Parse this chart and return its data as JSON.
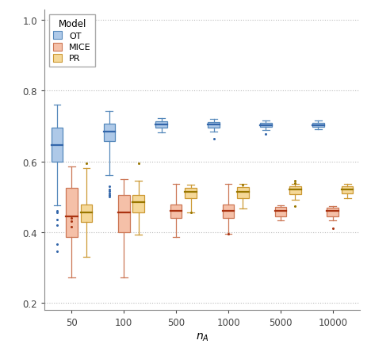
{
  "x_positions": [
    50,
    100,
    500,
    1000,
    5000,
    10000
  ],
  "x_labels": [
    "50",
    "100",
    "500",
    "1000",
    "5000",
    "10000"
  ],
  "x_label": "n_A",
  "ylim": [
    0.18,
    1.03
  ],
  "yticks": [
    0.2,
    0.4,
    0.6,
    0.8,
    1.0
  ],
  "grid_color": "#bbbbbb",
  "background_color": "#ffffff",
  "models": [
    "OT",
    "MICE",
    "PR"
  ],
  "colors": {
    "OT": {
      "fill": "#aec9e8",
      "edge": "#5588bb",
      "median": "#3366aa",
      "flier": "#3366aa"
    },
    "MICE": {
      "fill": "#f5c0a8",
      "edge": "#cc7755",
      "median": "#aa3311",
      "flier": "#aa3311"
    },
    "PR": {
      "fill": "#f5d898",
      "edge": "#cc9933",
      "median": "#997700",
      "flier": "#997700"
    }
  },
  "legend_colors": {
    "OT": "#aec9e8",
    "MICE": "#f5c0a8",
    "PR": "#f5d898"
  },
  "legend_edge_colors": {
    "OT": "#5588bb",
    "MICE": "#cc7755",
    "PR": "#cc9933"
  },
  "offsets": {
    "OT": -0.28,
    "MICE": 0.0,
    "PR": 0.28
  },
  "box_width": 0.22,
  "data": {
    "OT": {
      "50": {
        "q1": 0.6,
        "median": 0.645,
        "q3": 0.695,
        "whislo": 0.475,
        "whishi": 0.76,
        "fliers": [
          0.345,
          0.365,
          0.42,
          0.435,
          0.455,
          0.46
        ]
      },
      "100": {
        "q1": 0.658,
        "median": 0.685,
        "q3": 0.706,
        "whislo": 0.56,
        "whishi": 0.742,
        "fliers": [
          0.5,
          0.505,
          0.51,
          0.515,
          0.52,
          0.53
        ]
      },
      "500": {
        "q1": 0.695,
        "median": 0.704,
        "q3": 0.713,
        "whislo": 0.683,
        "whishi": 0.722,
        "fliers": []
      },
      "1000": {
        "q1": 0.695,
        "median": 0.704,
        "q3": 0.712,
        "whislo": 0.685,
        "whishi": 0.72,
        "fliers": [
          0.665
        ]
      },
      "5000": {
        "q1": 0.697,
        "median": 0.703,
        "q3": 0.709,
        "whislo": 0.688,
        "whishi": 0.716,
        "fliers": [
          0.677
        ]
      },
      "10000": {
        "q1": 0.697,
        "median": 0.703,
        "q3": 0.709,
        "whislo": 0.69,
        "whishi": 0.716,
        "fliers": []
      }
    },
    "MICE": {
      "50": {
        "q1": 0.385,
        "median": 0.445,
        "q3": 0.525,
        "whislo": 0.27,
        "whishi": 0.585,
        "fliers": [
          0.415,
          0.43,
          0.44
        ]
      },
      "100": {
        "q1": 0.4,
        "median": 0.455,
        "q3": 0.505,
        "whislo": 0.27,
        "whishi": 0.55,
        "fliers": []
      },
      "500": {
        "q1": 0.44,
        "median": 0.46,
        "q3": 0.478,
        "whislo": 0.385,
        "whishi": 0.535,
        "fliers": []
      },
      "1000": {
        "q1": 0.44,
        "median": 0.46,
        "q3": 0.478,
        "whislo": 0.395,
        "whishi": 0.535,
        "fliers": [
          0.395
        ]
      },
      "5000": {
        "q1": 0.445,
        "median": 0.46,
        "q3": 0.47,
        "whislo": 0.432,
        "whishi": 0.476,
        "fliers": []
      },
      "10000": {
        "q1": 0.445,
        "median": 0.46,
        "q3": 0.468,
        "whislo": 0.433,
        "whishi": 0.474,
        "fliers": [
          0.41
        ]
      }
    },
    "PR": {
      "50": {
        "q1": 0.428,
        "median": 0.455,
        "q3": 0.478,
        "whislo": 0.33,
        "whishi": 0.58,
        "fliers": [
          0.595
        ]
      },
      "100": {
        "q1": 0.455,
        "median": 0.485,
        "q3": 0.505,
        "whislo": 0.392,
        "whishi": 0.545,
        "fliers": [
          0.595
        ]
      },
      "500": {
        "q1": 0.496,
        "median": 0.514,
        "q3": 0.524,
        "whislo": 0.456,
        "whishi": 0.534,
        "fliers": [
          0.456
        ]
      },
      "1000": {
        "q1": 0.496,
        "median": 0.514,
        "q3": 0.528,
        "whislo": 0.466,
        "whishi": 0.536,
        "fliers": [
          0.534
        ]
      },
      "5000": {
        "q1": 0.506,
        "median": 0.52,
        "q3": 0.53,
        "whislo": 0.492,
        "whishi": 0.536,
        "fliers": [
          0.472,
          0.538,
          0.546
        ]
      },
      "10000": {
        "q1": 0.51,
        "median": 0.52,
        "q3": 0.53,
        "whislo": 0.496,
        "whishi": 0.536,
        "fliers": []
      }
    }
  }
}
